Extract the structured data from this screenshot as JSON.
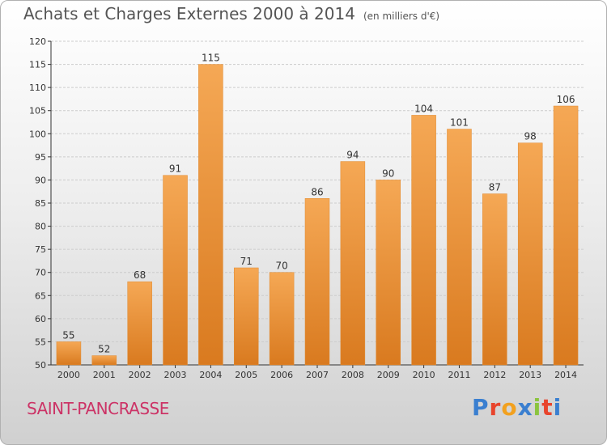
{
  "header": {
    "title": "Achats et Charges Externes 2000 à 2014",
    "unit": "(en milliers d'€)"
  },
  "footer": {
    "city": "SAINT-PANCRASSE",
    "logo": "Proxiti"
  },
  "colors": {
    "bar_top": "#f5a855",
    "bar_bottom": "#d97a1f",
    "city_text": "#cc3366"
  },
  "chart_data": {
    "type": "bar",
    "categories": [
      "2000",
      "2001",
      "2002",
      "2003",
      "2004",
      "2005",
      "2006",
      "2007",
      "2008",
      "2009",
      "2010",
      "2011",
      "2012",
      "2013",
      "2014"
    ],
    "values": [
      55,
      52,
      68,
      91,
      115,
      71,
      70,
      86,
      94,
      90,
      104,
      101,
      87,
      98,
      106
    ],
    "title": "Achats et Charges Externes 2000 à 2014",
    "ylim": [
      50,
      120
    ],
    "yticks": [
      50,
      55,
      60,
      65,
      70,
      75,
      80,
      85,
      90,
      95,
      100,
      105,
      110,
      115,
      120
    ],
    "grid": true,
    "data_labels": true
  }
}
